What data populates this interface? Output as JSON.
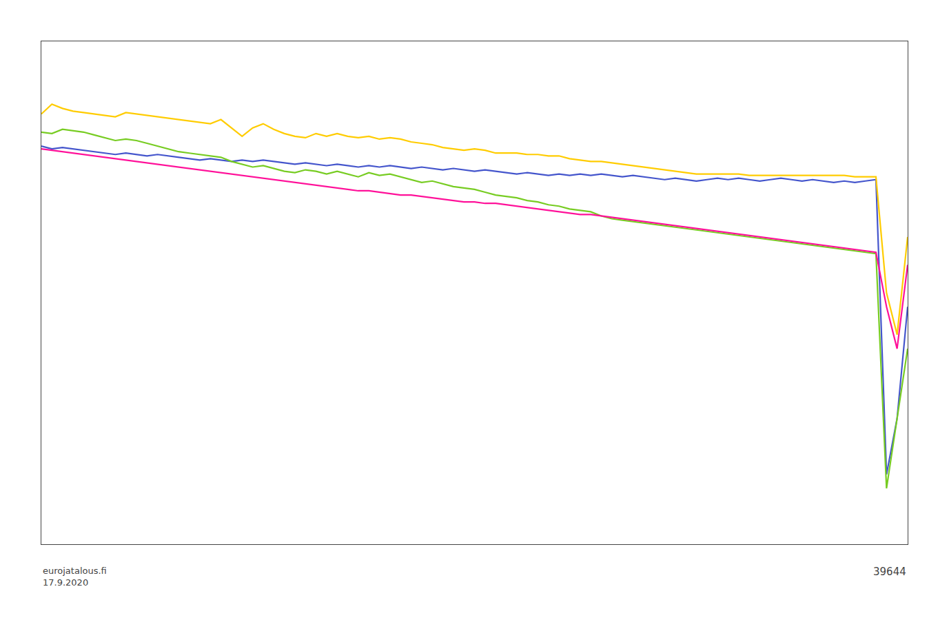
{
  "chart_data": {
    "type": "line",
    "categories": [
      null,
      null,
      null,
      null,
      null,
      null,
      null,
      null,
      null,
      null,
      null,
      null,
      null,
      null,
      null,
      null,
      null,
      null,
      null,
      null,
      null,
      null,
      null,
      null,
      null,
      null,
      null,
      null,
      null,
      null,
      null,
      null,
      null,
      null,
      null,
      null,
      null,
      null,
      null,
      null,
      null,
      null,
      null,
      null,
      null,
      null,
      null,
      null,
      null,
      null,
      null,
      null,
      null,
      null,
      null,
      null,
      null,
      null,
      null,
      null,
      null,
      null,
      null,
      null,
      null,
      null,
      null,
      null,
      null,
      null,
      null,
      null,
      null,
      null,
      null,
      null,
      null,
      null,
      null,
      null,
      null,
      null,
      null
    ],
    "series": [
      {
        "color": "#4455cc",
        "values": [
          2.5,
          2.3,
          2.4,
          2.3,
          2.2,
          2.1,
          2.0,
          1.9,
          2.0,
          1.9,
          1.8,
          1.9,
          1.8,
          1.7,
          1.6,
          1.5,
          1.6,
          1.5,
          1.4,
          1.5,
          1.4,
          1.5,
          1.4,
          1.3,
          1.2,
          1.3,
          1.2,
          1.1,
          1.2,
          1.1,
          1.0,
          1.1,
          1.0,
          1.1,
          1.0,
          0.9,
          1.0,
          0.9,
          0.8,
          0.9,
          0.8,
          0.7,
          0.8,
          0.7,
          0.6,
          0.5,
          0.6,
          0.5,
          0.4,
          0.5,
          0.4,
          0.5,
          0.4,
          0.5,
          0.4,
          0.3,
          0.4,
          0.3,
          0.2,
          0.1,
          0.2,
          0.1,
          0.0,
          0.1,
          0.2,
          0.1,
          0.2,
          0.1,
          0.0,
          0.1,
          0.2,
          0.1,
          0.0,
          0.1,
          0.0,
          -0.1,
          0.0,
          -0.1,
          0.0,
          0.1,
          -21.0,
          -17.0,
          -9.0
        ]
      },
      {
        "color": "#77cc22",
        "values": [
          3.5,
          3.4,
          3.7,
          3.6,
          3.5,
          3.3,
          3.1,
          2.9,
          3.0,
          2.9,
          2.7,
          2.5,
          2.3,
          2.1,
          2.0,
          1.9,
          1.8,
          1.7,
          1.4,
          1.2,
          1.0,
          1.1,
          0.9,
          0.7,
          0.6,
          0.8,
          0.7,
          0.5,
          0.7,
          0.5,
          0.3,
          0.6,
          0.4,
          0.5,
          0.3,
          0.1,
          -0.1,
          0.0,
          -0.2,
          -0.4,
          -0.5,
          -0.6,
          -0.8,
          -1.0,
          -1.1,
          -1.2,
          -1.4,
          -1.5,
          -1.7,
          -1.8,
          -2.0,
          -2.1,
          -2.2,
          -2.5,
          -2.7,
          -2.8,
          -2.9,
          -3.0,
          -3.1,
          -3.2,
          -3.3,
          -3.4,
          -3.5,
          -3.6,
          -3.7,
          -3.8,
          -3.9,
          -4.0,
          -4.1,
          -4.2,
          -4.3,
          -4.4,
          -4.5,
          -4.6,
          -4.7,
          -4.8,
          -4.9,
          -5.0,
          -5.1,
          -5.2,
          -22.0,
          -17.0,
          -12.0
        ]
      },
      {
        "color": "#ffcc00",
        "values": [
          4.8,
          5.5,
          5.2,
          5.0,
          4.9,
          4.8,
          4.7,
          4.6,
          4.9,
          4.8,
          4.7,
          4.6,
          4.5,
          4.4,
          4.3,
          4.2,
          4.1,
          4.4,
          3.8,
          3.2,
          3.8,
          4.1,
          3.7,
          3.4,
          3.2,
          3.1,
          3.4,
          3.2,
          3.4,
          3.2,
          3.1,
          3.2,
          3.0,
          3.1,
          3.0,
          2.8,
          2.7,
          2.6,
          2.4,
          2.3,
          2.2,
          2.3,
          2.2,
          2.0,
          2.0,
          2.0,
          1.9,
          1.9,
          1.8,
          1.8,
          1.6,
          1.5,
          1.4,
          1.4,
          1.3,
          1.2,
          1.1,
          1.0,
          0.9,
          0.8,
          0.7,
          0.6,
          0.5,
          0.5,
          0.5,
          0.5,
          0.5,
          0.4,
          0.4,
          0.4,
          0.4,
          0.4,
          0.4,
          0.4,
          0.4,
          0.4,
          0.4,
          0.3,
          0.3,
          0.3,
          -8.0,
          -11.0,
          -4.0
        ]
      },
      {
        "color": "#ff1099",
        "values": [
          2.3,
          2.2,
          2.1,
          2.0,
          1.9,
          1.8,
          1.7,
          1.6,
          1.5,
          1.4,
          1.3,
          1.2,
          1.1,
          1.0,
          0.9,
          0.8,
          0.7,
          0.6,
          0.5,
          0.4,
          0.3,
          0.2,
          0.1,
          0.0,
          -0.1,
          -0.2,
          -0.3,
          -0.4,
          -0.5,
          -0.6,
          -0.7,
          -0.7,
          -0.8,
          -0.9,
          -1.0,
          -1.0,
          -1.1,
          -1.2,
          -1.3,
          -1.4,
          -1.5,
          -1.5,
          -1.6,
          -1.6,
          -1.7,
          -1.8,
          -1.9,
          -2.0,
          -2.1,
          -2.2,
          -2.3,
          -2.4,
          -2.4,
          -2.5,
          -2.6,
          -2.7,
          -2.8,
          -2.9,
          -3.0,
          -3.1,
          -3.2,
          -3.3,
          -3.4,
          -3.5,
          -3.6,
          -3.7,
          -3.8,
          -3.9,
          -4.0,
          -4.1,
          -4.2,
          -4.3,
          -4.4,
          -4.5,
          -4.6,
          -4.7,
          -4.8,
          -4.9,
          -5.0,
          -5.1,
          -9.0,
          -12.0,
          -6.0
        ]
      }
    ],
    "ylim": [
      -26,
      10
    ],
    "grid": false,
    "tick_labels": false,
    "annotations": [
      "eurojatalous.fi\n17.9.2020",
      "39644"
    ]
  }
}
